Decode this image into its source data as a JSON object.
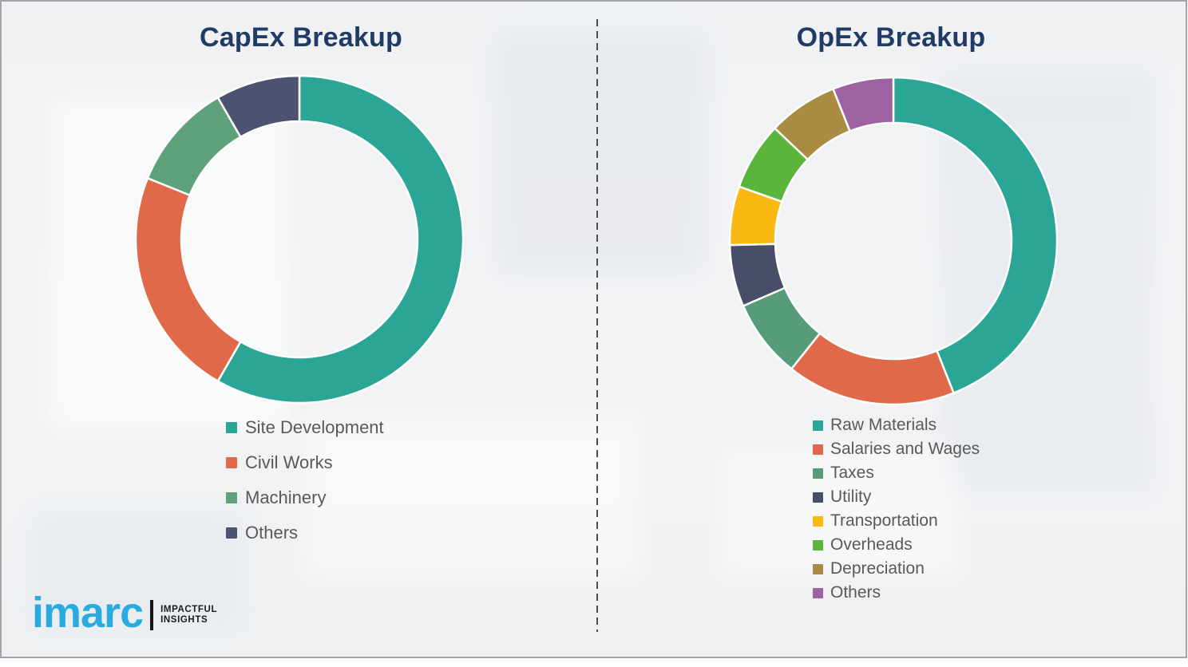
{
  "logo": {
    "wordmark": "imarc",
    "tagline_line1": "IMPACTFUL",
    "tagline_line2": "INSIGHTS",
    "wordmark_color": "#29abe2"
  },
  "divider": {
    "style": "vertical dashed line separating the two charts"
  },
  "palette": {
    "title_navy": "#1f3b66",
    "legend_text_gray": "#595959",
    "background": "#f0f1f3"
  },
  "chart_data": [
    {
      "type": "pie",
      "subtype": "donut",
      "title": "CapEx Breakup",
      "labels": [
        "Site Development",
        "Civil Works",
        "Machinery",
        "Others"
      ],
      "values": [
        58.3,
        22.8,
        10.6,
        8.3
      ],
      "colors": [
        "#2ba595",
        "#e0694a",
        "#5ea17b",
        "#4c5270"
      ],
      "start_angle_deg": 0,
      "direction": "clockwise",
      "inner_radius_ratio": 0.72,
      "legend_position": "below chart, left-aligned",
      "values_note": "percent shares estimated from arc angles; no numeric labels shown in chart"
    },
    {
      "type": "pie",
      "subtype": "donut",
      "title": "OpEx Breakup",
      "labels": [
        "Raw Materials",
        "Salaries and Wages",
        "Taxes",
        "Utility",
        "Transportation",
        "Overheads",
        "Depreciation",
        "Others"
      ],
      "values": [
        44.0,
        16.7,
        7.8,
        6.1,
        5.8,
        6.7,
        6.9,
        6.0
      ],
      "colors": [
        "#2ba595",
        "#e0694a",
        "#569c7a",
        "#484d68",
        "#f9b912",
        "#5bb43b",
        "#a98c41",
        "#9c63a0"
      ],
      "start_angle_deg": 0,
      "direction": "clockwise",
      "inner_radius_ratio": 0.72,
      "legend_position": "below chart, left-aligned",
      "values_note": "percent shares estimated from arc angles; no numeric labels shown in chart"
    }
  ]
}
